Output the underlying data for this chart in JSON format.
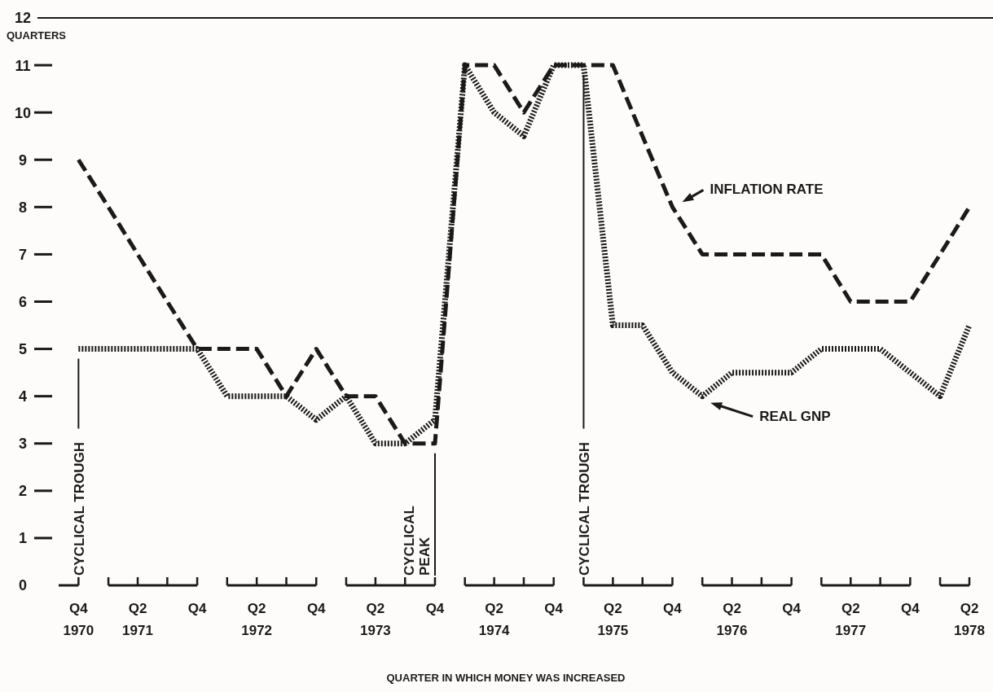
{
  "chart_data": {
    "type": "line",
    "xlabel": "QUARTER IN WHICH MONEY WAS INCREASED",
    "ylabel": "QUARTERS",
    "x": [
      "1970-10",
      "1971-01",
      "1971-04",
      "1971-07",
      "1971-10",
      "1972-01",
      "1972-04",
      "1972-07",
      "1972-10",
      "1973-01",
      "1973-04",
      "1973-07",
      "1973-10",
      "1974-01",
      "1974-04",
      "1974-07",
      "1974-10",
      "1975-01",
      "1975-04",
      "1975-07",
      "1975-10",
      "1976-01",
      "1976-04",
      "1976-07",
      "1976-10",
      "1977-01",
      "1977-04",
      "1977-07",
      "1977-10",
      "1978-01",
      "1978-04"
    ],
    "series": [
      {
        "name": "INFLATION RATE",
        "color": "#1a1a1a",
        "line_style": "dashed",
        "values": [
          9,
          8,
          7,
          6,
          5,
          5,
          5,
          4,
          5,
          4,
          4,
          3,
          3,
          11,
          11,
          10,
          11,
          11,
          11,
          9.5,
          8,
          7,
          7,
          7,
          7,
          7,
          6,
          6,
          6,
          7,
          8
        ]
      },
      {
        "name": "REAL GNP",
        "color": "#1a1a1a",
        "line_style": "dotted",
        "values": [
          5,
          5,
          5,
          5,
          5,
          4,
          4,
          4,
          3.5,
          4,
          3,
          3,
          3.5,
          11,
          10,
          9.5,
          11,
          11,
          5.5,
          5.5,
          4.5,
          4,
          4.5,
          4.5,
          4.5,
          5,
          5,
          5,
          4.5,
          4,
          5.5
        ]
      }
    ],
    "xlim": [
      "1970-08",
      "1978-04"
    ],
    "xticks": [
      {
        "value": "1970-10",
        "label": "Q4\n1970"
      },
      {
        "value": "1971-01",
        "label": null
      },
      {
        "value": "1971-04",
        "label": "Q2\n1971"
      },
      {
        "value": "1971-07",
        "label": null
      },
      {
        "value": "1971-10",
        "label": "Q4"
      },
      {
        "value": "1972-01",
        "label": null
      },
      {
        "value": "1972-04",
        "label": "Q2\n1972"
      },
      {
        "value": "1972-07",
        "label": null
      },
      {
        "value": "1972-10",
        "label": "Q4"
      },
      {
        "value": "1973-01",
        "label": null
      },
      {
        "value": "1973-04",
        "label": "Q2\n1973"
      },
      {
        "value": "1973-07",
        "label": null
      },
      {
        "value": "1973-10",
        "label": "Q4"
      },
      {
        "value": "1974-01",
        "label": null
      },
      {
        "value": "1974-04",
        "label": "Q2\n1974"
      },
      {
        "value": "1974-07",
        "label": null
      },
      {
        "value": "1974-10",
        "label": "Q4"
      },
      {
        "value": "1975-01",
        "label": null
      },
      {
        "value": "1975-04",
        "label": "Q2\n1975"
      },
      {
        "value": "1975-07",
        "label": null
      },
      {
        "value": "1975-10",
        "label": "Q4"
      },
      {
        "value": "1976-01",
        "label": null
      },
      {
        "value": "1976-04",
        "label": "Q2\n1976"
      },
      {
        "value": "1976-07",
        "label": null
      },
      {
        "value": "1976-10",
        "label": "Q4"
      },
      {
        "value": "1977-01",
        "label": null
      },
      {
        "value": "1977-04",
        "label": "Q2\n1977"
      },
      {
        "value": "1977-07",
        "label": null
      },
      {
        "value": "1977-10",
        "label": "Q4"
      },
      {
        "value": "1978-01",
        "label": null
      },
      {
        "value": "1978-04",
        "label": "Q2\n1978"
      }
    ],
    "ylim": [
      0,
      12
    ],
    "yticks": [
      0,
      1,
      2,
      3,
      4,
      5,
      6,
      7,
      8,
      9,
      10,
      11,
      12
    ],
    "ref_lines": [
      {
        "axis": "x",
        "value": "1970-10",
        "label": "CYCLICAL TROUGH"
      },
      {
        "axis": "x",
        "value": "1973-10",
        "label": "CYCLICAL PEAK"
      },
      {
        "axis": "x",
        "value": "1975-01",
        "label": "CYCLICAL TROUGH"
      }
    ],
    "grid": false,
    "legend": "right",
    "marker": "none"
  }
}
